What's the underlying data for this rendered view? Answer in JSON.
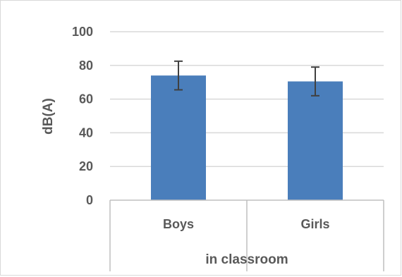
{
  "chart_data": {
    "type": "bar",
    "categories": [
      "Boys",
      "Girls"
    ],
    "series": [
      {
        "values": [
          74,
          70.5
        ],
        "error": [
          8.5,
          8.5
        ]
      }
    ],
    "title": "",
    "xlabel": "in classroom",
    "ylabel": "dB(A)",
    "ylim": [
      0,
      100
    ],
    "yticks": [
      0,
      20,
      40,
      60,
      80,
      100
    ],
    "ytick_labels": [
      "0",
      "20",
      "40",
      "60",
      "80",
      "100"
    ],
    "grid": true,
    "legend": "none",
    "colors": {
      "bar": "#4a7ebb",
      "grid": "#d9d9d9",
      "axis": "#bfbfbf",
      "error": "#404040"
    }
  }
}
